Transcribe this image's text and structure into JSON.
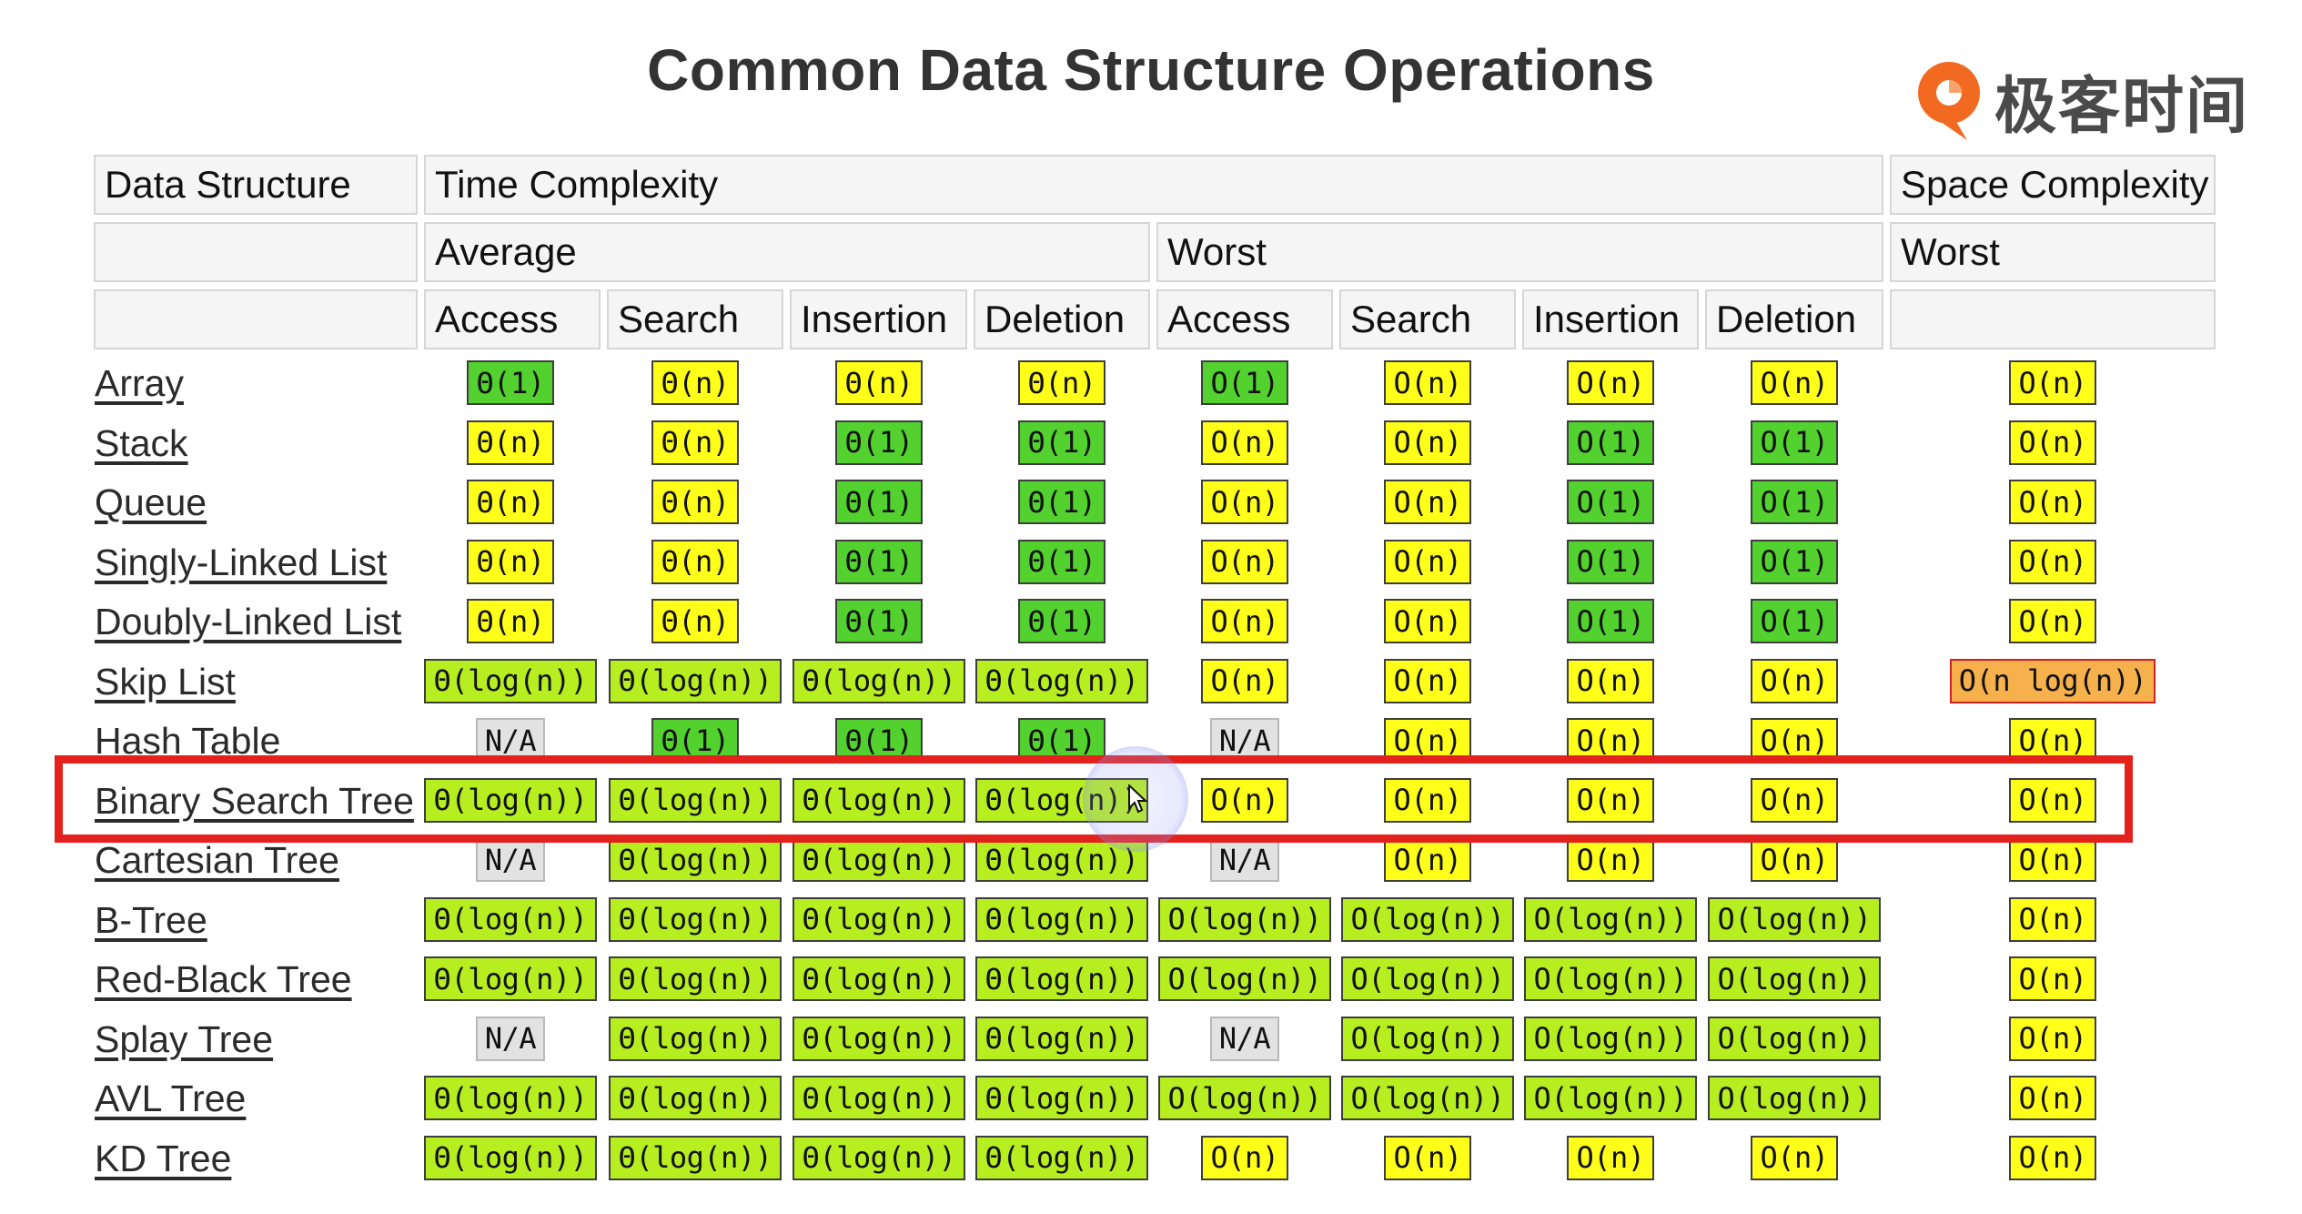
{
  "title": "Common Data Structure Operations",
  "logo": {
    "text": "极客时间",
    "icon": "geektime-logo-icon",
    "color": "#f26a21"
  },
  "header": {
    "row1": {
      "data_structure": "Data Structure",
      "time_complexity": "Time Complexity",
      "space_complexity": "Space Complexity"
    },
    "row2": {
      "average": "Average",
      "worst": "Worst",
      "space_worst": "Worst"
    },
    "row3": [
      "Access",
      "Search",
      "Insertion",
      "Deletion",
      "Access",
      "Search",
      "Insertion",
      "Deletion"
    ]
  },
  "rating_colors": {
    "good": "#52d12f",
    "fair": "#b6ee20",
    "bad": "#ffff1a",
    "poor": "#f6b04c",
    "na": "#e2e2e2"
  },
  "highlighted_row": "Binary Search Tree",
  "highlight_color": "#e3211d",
  "rows": [
    {
      "name": "Array",
      "cells": [
        {
          "t": "Θ(1)",
          "r": "good"
        },
        {
          "t": "Θ(n)",
          "r": "bad"
        },
        {
          "t": "Θ(n)",
          "r": "bad"
        },
        {
          "t": "Θ(n)",
          "r": "bad"
        },
        {
          "t": "O(1)",
          "r": "good"
        },
        {
          "t": "O(n)",
          "r": "bad"
        },
        {
          "t": "O(n)",
          "r": "bad"
        },
        {
          "t": "O(n)",
          "r": "bad"
        },
        {
          "t": "O(n)",
          "r": "bad"
        }
      ]
    },
    {
      "name": "Stack",
      "cells": [
        {
          "t": "Θ(n)",
          "r": "bad"
        },
        {
          "t": "Θ(n)",
          "r": "bad"
        },
        {
          "t": "Θ(1)",
          "r": "good"
        },
        {
          "t": "Θ(1)",
          "r": "good"
        },
        {
          "t": "O(n)",
          "r": "bad"
        },
        {
          "t": "O(n)",
          "r": "bad"
        },
        {
          "t": "O(1)",
          "r": "good"
        },
        {
          "t": "O(1)",
          "r": "good"
        },
        {
          "t": "O(n)",
          "r": "bad"
        }
      ]
    },
    {
      "name": "Queue",
      "cells": [
        {
          "t": "Θ(n)",
          "r": "bad"
        },
        {
          "t": "Θ(n)",
          "r": "bad"
        },
        {
          "t": "Θ(1)",
          "r": "good"
        },
        {
          "t": "Θ(1)",
          "r": "good"
        },
        {
          "t": "O(n)",
          "r": "bad"
        },
        {
          "t": "O(n)",
          "r": "bad"
        },
        {
          "t": "O(1)",
          "r": "good"
        },
        {
          "t": "O(1)",
          "r": "good"
        },
        {
          "t": "O(n)",
          "r": "bad"
        }
      ]
    },
    {
      "name": "Singly-Linked List",
      "cells": [
        {
          "t": "Θ(n)",
          "r": "bad"
        },
        {
          "t": "Θ(n)",
          "r": "bad"
        },
        {
          "t": "Θ(1)",
          "r": "good"
        },
        {
          "t": "Θ(1)",
          "r": "good"
        },
        {
          "t": "O(n)",
          "r": "bad"
        },
        {
          "t": "O(n)",
          "r": "bad"
        },
        {
          "t": "O(1)",
          "r": "good"
        },
        {
          "t": "O(1)",
          "r": "good"
        },
        {
          "t": "O(n)",
          "r": "bad"
        }
      ]
    },
    {
      "name": "Doubly-Linked List",
      "cells": [
        {
          "t": "Θ(n)",
          "r": "bad"
        },
        {
          "t": "Θ(n)",
          "r": "bad"
        },
        {
          "t": "Θ(1)",
          "r": "good"
        },
        {
          "t": "Θ(1)",
          "r": "good"
        },
        {
          "t": "O(n)",
          "r": "bad"
        },
        {
          "t": "O(n)",
          "r": "bad"
        },
        {
          "t": "O(1)",
          "r": "good"
        },
        {
          "t": "O(1)",
          "r": "good"
        },
        {
          "t": "O(n)",
          "r": "bad"
        }
      ]
    },
    {
      "name": "Skip List",
      "cells": [
        {
          "t": "Θ(log(n))",
          "r": "fair"
        },
        {
          "t": "Θ(log(n))",
          "r": "fair"
        },
        {
          "t": "Θ(log(n))",
          "r": "fair"
        },
        {
          "t": "Θ(log(n))",
          "r": "fair"
        },
        {
          "t": "O(n)",
          "r": "bad"
        },
        {
          "t": "O(n)",
          "r": "bad"
        },
        {
          "t": "O(n)",
          "r": "bad"
        },
        {
          "t": "O(n)",
          "r": "bad"
        },
        {
          "t": "O(n log(n))",
          "r": "poor"
        }
      ]
    },
    {
      "name": "Hash Table",
      "cells": [
        {
          "t": "N/A",
          "r": "na"
        },
        {
          "t": "Θ(1)",
          "r": "good"
        },
        {
          "t": "Θ(1)",
          "r": "good"
        },
        {
          "t": "Θ(1)",
          "r": "good"
        },
        {
          "t": "N/A",
          "r": "na"
        },
        {
          "t": "O(n)",
          "r": "bad"
        },
        {
          "t": "O(n)",
          "r": "bad"
        },
        {
          "t": "O(n)",
          "r": "bad"
        },
        {
          "t": "O(n)",
          "r": "bad"
        }
      ]
    },
    {
      "name": "Binary Search Tree",
      "cells": [
        {
          "t": "Θ(log(n))",
          "r": "fair"
        },
        {
          "t": "Θ(log(n))",
          "r": "fair"
        },
        {
          "t": "Θ(log(n))",
          "r": "fair"
        },
        {
          "t": "Θ(log(n))",
          "r": "fair"
        },
        {
          "t": "O(n)",
          "r": "bad"
        },
        {
          "t": "O(n)",
          "r": "bad"
        },
        {
          "t": "O(n)",
          "r": "bad"
        },
        {
          "t": "O(n)",
          "r": "bad"
        },
        {
          "t": "O(n)",
          "r": "bad"
        }
      ]
    },
    {
      "name": "Cartesian Tree",
      "cells": [
        {
          "t": "N/A",
          "r": "na"
        },
        {
          "t": "Θ(log(n))",
          "r": "fair"
        },
        {
          "t": "Θ(log(n))",
          "r": "fair"
        },
        {
          "t": "Θ(log(n))",
          "r": "fair"
        },
        {
          "t": "N/A",
          "r": "na"
        },
        {
          "t": "O(n)",
          "r": "bad"
        },
        {
          "t": "O(n)",
          "r": "bad"
        },
        {
          "t": "O(n)",
          "r": "bad"
        },
        {
          "t": "O(n)",
          "r": "bad"
        }
      ]
    },
    {
      "name": "B-Tree",
      "cells": [
        {
          "t": "Θ(log(n))",
          "r": "fair"
        },
        {
          "t": "Θ(log(n))",
          "r": "fair"
        },
        {
          "t": "Θ(log(n))",
          "r": "fair"
        },
        {
          "t": "Θ(log(n))",
          "r": "fair"
        },
        {
          "t": "O(log(n))",
          "r": "fair"
        },
        {
          "t": "O(log(n))",
          "r": "fair"
        },
        {
          "t": "O(log(n))",
          "r": "fair"
        },
        {
          "t": "O(log(n))",
          "r": "fair"
        },
        {
          "t": "O(n)",
          "r": "bad"
        }
      ]
    },
    {
      "name": "Red-Black Tree",
      "cells": [
        {
          "t": "Θ(log(n))",
          "r": "fair"
        },
        {
          "t": "Θ(log(n))",
          "r": "fair"
        },
        {
          "t": "Θ(log(n))",
          "r": "fair"
        },
        {
          "t": "Θ(log(n))",
          "r": "fair"
        },
        {
          "t": "O(log(n))",
          "r": "fair"
        },
        {
          "t": "O(log(n))",
          "r": "fair"
        },
        {
          "t": "O(log(n))",
          "r": "fair"
        },
        {
          "t": "O(log(n))",
          "r": "fair"
        },
        {
          "t": "O(n)",
          "r": "bad"
        }
      ]
    },
    {
      "name": "Splay Tree",
      "cells": [
        {
          "t": "N/A",
          "r": "na"
        },
        {
          "t": "Θ(log(n))",
          "r": "fair"
        },
        {
          "t": "Θ(log(n))",
          "r": "fair"
        },
        {
          "t": "Θ(log(n))",
          "r": "fair"
        },
        {
          "t": "N/A",
          "r": "na"
        },
        {
          "t": "O(log(n))",
          "r": "fair"
        },
        {
          "t": "O(log(n))",
          "r": "fair"
        },
        {
          "t": "O(log(n))",
          "r": "fair"
        },
        {
          "t": "O(n)",
          "r": "bad"
        }
      ]
    },
    {
      "name": "AVL Tree",
      "cells": [
        {
          "t": "Θ(log(n))",
          "r": "fair"
        },
        {
          "t": "Θ(log(n))",
          "r": "fair"
        },
        {
          "t": "Θ(log(n))",
          "r": "fair"
        },
        {
          "t": "Θ(log(n))",
          "r": "fair"
        },
        {
          "t": "O(log(n))",
          "r": "fair"
        },
        {
          "t": "O(log(n))",
          "r": "fair"
        },
        {
          "t": "O(log(n))",
          "r": "fair"
        },
        {
          "t": "O(log(n))",
          "r": "fair"
        },
        {
          "t": "O(n)",
          "r": "bad"
        }
      ]
    },
    {
      "name": "KD Tree",
      "cells": [
        {
          "t": "Θ(log(n))",
          "r": "fair"
        },
        {
          "t": "Θ(log(n))",
          "r": "fair"
        },
        {
          "t": "Θ(log(n))",
          "r": "fair"
        },
        {
          "t": "Θ(log(n))",
          "r": "fair"
        },
        {
          "t": "O(n)",
          "r": "bad"
        },
        {
          "t": "O(n)",
          "r": "bad"
        },
        {
          "t": "O(n)",
          "r": "bad"
        },
        {
          "t": "O(n)",
          "r": "bad"
        },
        {
          "t": "O(n)",
          "r": "bad"
        }
      ]
    }
  ]
}
